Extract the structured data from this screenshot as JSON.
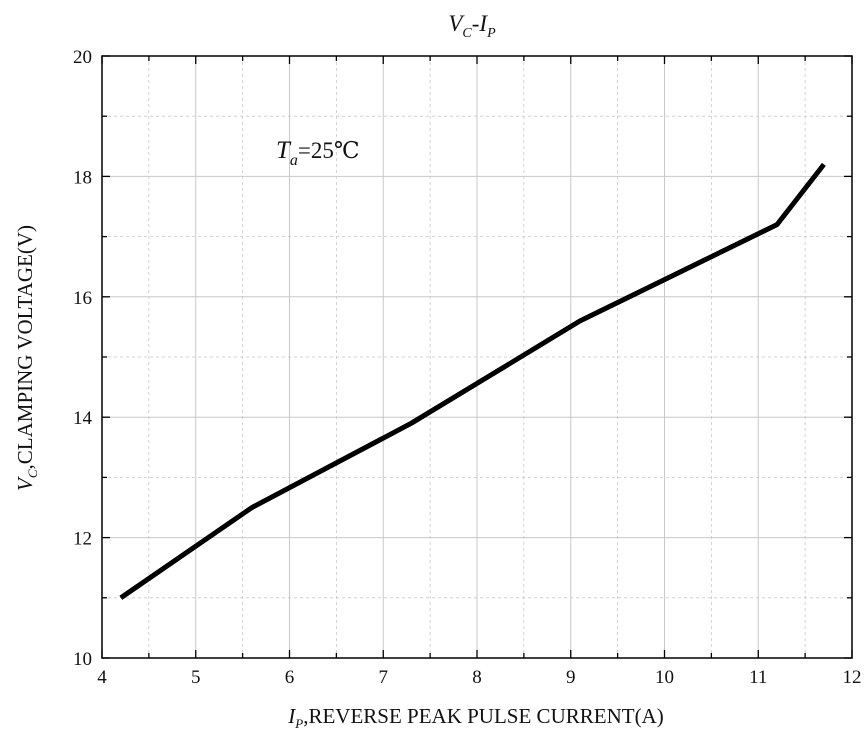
{
  "chart_data": {
    "type": "line",
    "title": "V_C-I_P",
    "title_parts": {
      "v": "V",
      "v_sub": "C",
      "dash": "-",
      "i": "I",
      "i_sub": "P"
    },
    "xlabel": "I_P,REVERSE PEAK PULSE CURRENT(A)",
    "xlabel_parts": {
      "symbol": "I",
      "sub": "P",
      "text": ",REVERSE PEAK PULSE CURRENT(A)"
    },
    "ylabel": "V_C,CLAMPING VOLTAGE(V)",
    "ylabel_parts": {
      "symbol": "V",
      "sub": "C",
      "text": ",CLAMPING VOLTAGE(V)"
    },
    "annotation": {
      "symbol": "T",
      "sub": "a",
      "text": "=25℃"
    },
    "xlim": [
      4,
      12
    ],
    "ylim": [
      10,
      20
    ],
    "xticks": [
      "4",
      "5",
      "6",
      "7",
      "8",
      "9",
      "10",
      "11",
      "12"
    ],
    "yticks": [
      "10",
      "12",
      "14",
      "16",
      "18",
      "20"
    ],
    "grid": true,
    "series": [
      {
        "x": [
          4.2,
          5.6,
          7.3,
          9.1,
          11.2,
          11.7
        ],
        "y": [
          11.0,
          12.5,
          13.9,
          15.6,
          17.2,
          18.2
        ]
      }
    ],
    "line_color": "#000000",
    "grid_color": "#c8c8c8"
  }
}
